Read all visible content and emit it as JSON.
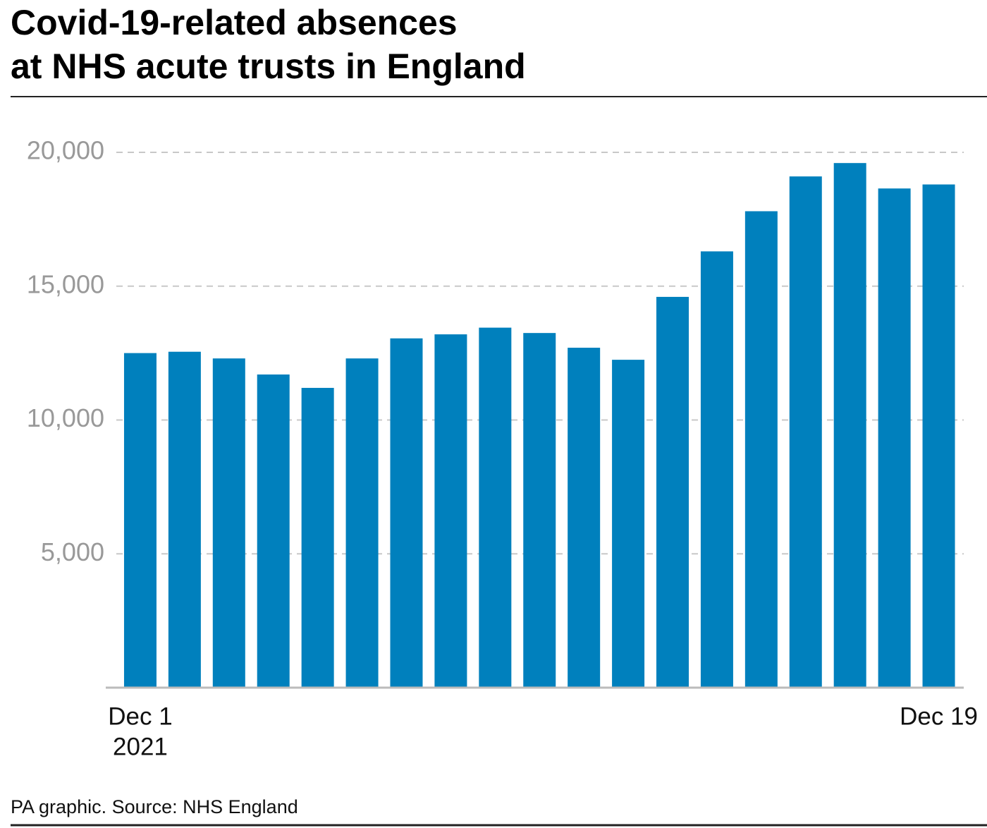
{
  "chart_data": {
    "type": "bar",
    "title": [
      "Covid-19-related absences",
      "at NHS acute trusts in England"
    ],
    "categories": [
      "Dec 1",
      null,
      null,
      null,
      null,
      null,
      null,
      null,
      null,
      null,
      null,
      null,
      null,
      null,
      null,
      null,
      null,
      null,
      "Dec 19"
    ],
    "x_year_label": "2021",
    "values": [
      12500,
      12550,
      12300,
      11700,
      11200,
      12300,
      13050,
      13200,
      13450,
      13250,
      12700,
      12250,
      14600,
      16300,
      17800,
      19100,
      19600,
      18650,
      18800
    ],
    "color": "#0080bd",
    "ylim": [
      0,
      20000
    ],
    "yticks": [
      {
        "value": 5000,
        "label": "5,000"
      },
      {
        "value": 10000,
        "label": "10,000"
      },
      {
        "value": 15000,
        "label": "15,000"
      },
      {
        "value": 20000,
        "label": "20,000"
      }
    ],
    "grid": true,
    "source": "PA graphic. Source: NHS England"
  }
}
